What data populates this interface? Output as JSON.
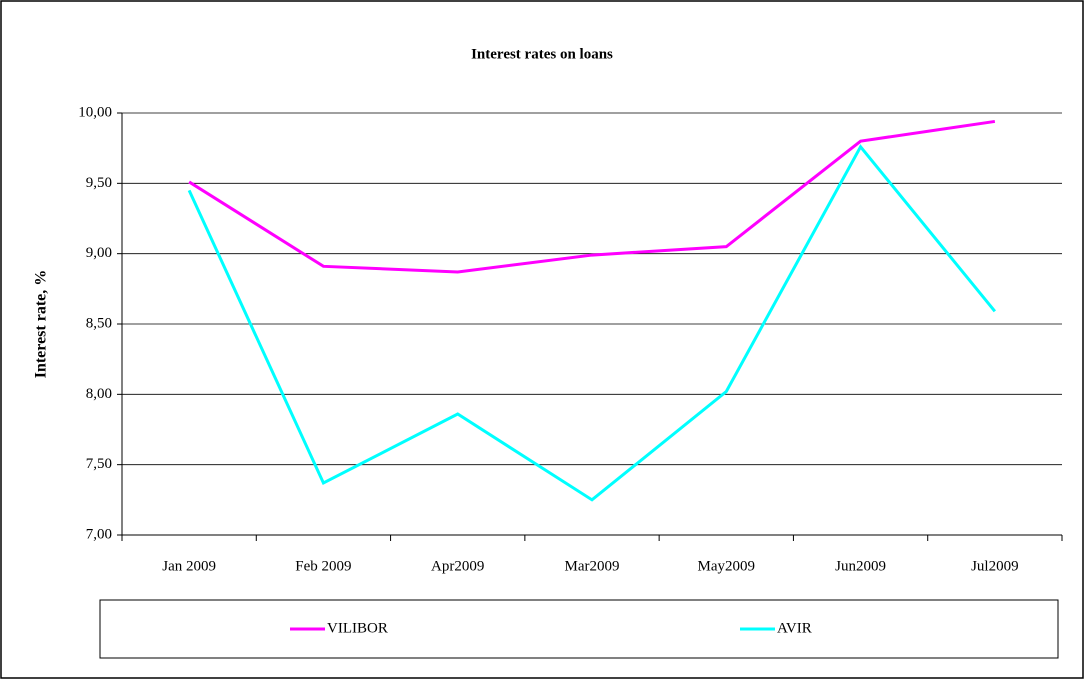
{
  "chart_data": {
    "type": "line",
    "title": "Interest rates on loans",
    "y_label": "Interest rate, %",
    "categories": [
      "Jan 2009",
      "Feb 2009",
      "Apr2009",
      "Mar2009",
      "May2009",
      "Jun2009",
      "Jul2009"
    ],
    "series": [
      {
        "name": "VILIBOR",
        "color": "#ff00ff",
        "values": [
          9.51,
          8.91,
          8.87,
          8.99,
          9.05,
          9.8,
          9.94
        ]
      },
      {
        "name": "AVIR",
        "color": "#00ffff",
        "values": [
          9.45,
          7.37,
          7.86,
          7.25,
          8.02,
          9.76,
          8.59
        ]
      }
    ],
    "ylim": [
      7,
      10
    ],
    "yticks": [
      {
        "value": 7,
        "label": "7,00"
      },
      {
        "value": 7.5,
        "label": "7,50"
      },
      {
        "value": 8,
        "label": "8,00"
      },
      {
        "value": 8.5,
        "label": "8,50"
      },
      {
        "value": 9,
        "label": "9,00"
      },
      {
        "value": 9.5,
        "label": "9,50"
      },
      {
        "value": 10,
        "label": "10,00"
      }
    ],
    "grid": true,
    "legend": "bottom"
  }
}
